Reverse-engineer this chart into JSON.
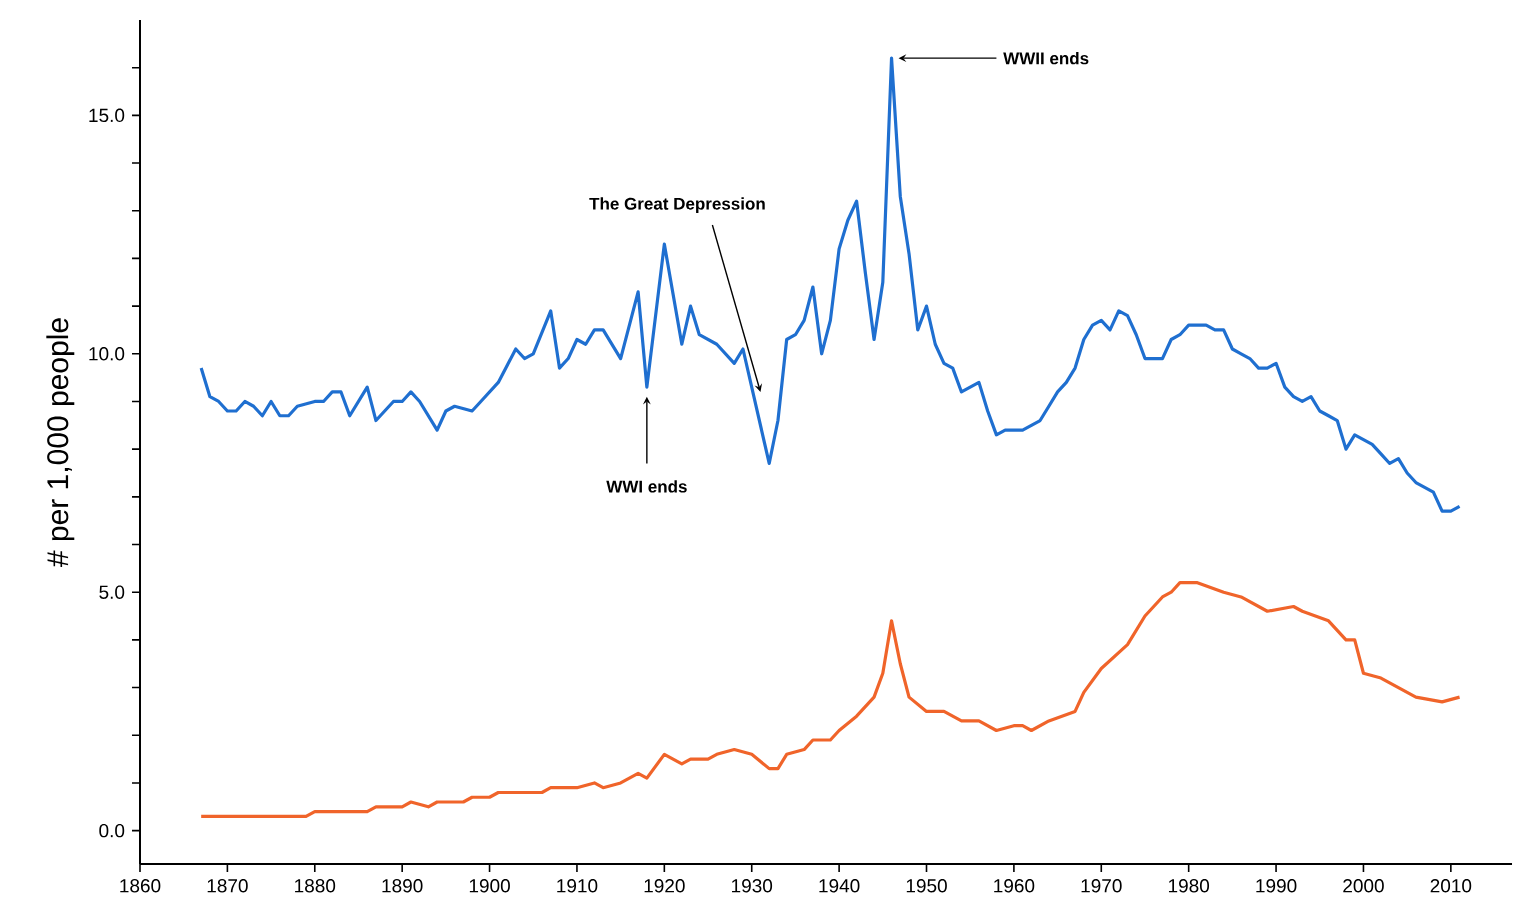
{
  "chart_data": {
    "type": "line",
    "ylabel": "# per 1,000 people",
    "xlim": [
      1860,
      2017
    ],
    "ylim": [
      -0.7,
      17
    ],
    "xticks": [
      1860,
      1870,
      1880,
      1890,
      1900,
      1910,
      1920,
      1930,
      1940,
      1950,
      1960,
      1970,
      1980,
      1990,
      2000,
      2010
    ],
    "yticks": [
      {
        "value": 0,
        "label": "0.0"
      },
      {
        "value": 1,
        "label": null
      },
      {
        "value": 2,
        "label": null
      },
      {
        "value": 3,
        "label": null
      },
      {
        "value": 4,
        "label": null
      },
      {
        "value": 5,
        "label": "5.0"
      },
      {
        "value": 6,
        "label": null
      },
      {
        "value": 7,
        "label": null
      },
      {
        "value": 8,
        "label": null
      },
      {
        "value": 9,
        "label": null
      },
      {
        "value": 10,
        "label": "10.0"
      },
      {
        "value": 11,
        "label": null
      },
      {
        "value": 12,
        "label": null
      },
      {
        "value": 13,
        "label": null
      },
      {
        "value": 14,
        "label": null
      },
      {
        "value": 15,
        "label": "15.0"
      },
      {
        "value": 16,
        "label": null
      }
    ],
    "grid": false,
    "legend": false,
    "marker": "none",
    "line_style": "solid",
    "series": [
      {
        "color": "#1f6fd0",
        "x": [
          1867,
          1868,
          1869,
          1870,
          1871,
          1872,
          1873,
          1874,
          1875,
          1876,
          1877,
          1878,
          1880,
          1881,
          1882,
          1883,
          1884,
          1886,
          1887,
          1889,
          1890,
          1891,
          1892,
          1894,
          1895,
          1896,
          1898,
          1899,
          1901,
          1903,
          1904,
          1905,
          1907,
          1908,
          1909,
          1910,
          1911,
          1912,
          1913,
          1915,
          1917,
          1918,
          1920,
          1922,
          1923,
          1924,
          1926,
          1928,
          1929,
          1932,
          1933,
          1934,
          1935,
          1936,
          1937,
          1938,
          1939,
          1940,
          1941,
          1942,
          1943,
          1944,
          1945,
          1946,
          1947,
          1948,
          1949,
          1950,
          1951,
          1952,
          1953,
          1954,
          1955,
          1956,
          1957,
          1958,
          1959,
          1960,
          1961,
          1962,
          1963,
          1964,
          1965,
          1966,
          1967,
          1968,
          1969,
          1970,
          1971,
          1972,
          1973,
          1974,
          1975,
          1976,
          1977,
          1978,
          1979,
          1980,
          1981,
          1982,
          1983,
          1984,
          1985,
          1986,
          1987,
          1988,
          1989,
          1990,
          1991,
          1992,
          1993,
          1994,
          1995,
          1996,
          1997,
          1998,
          1999,
          2000,
          2001,
          2002,
          2003,
          2004,
          2005,
          2006,
          2007,
          2008,
          2009,
          2010,
          2011
        ],
        "values": [
          9.7,
          9.1,
          9.0,
          8.8,
          8.8,
          9.0,
          8.9,
          8.7,
          9.0,
          8.7,
          8.7,
          8.9,
          9.0,
          9.0,
          9.2,
          9.2,
          8.7,
          9.3,
          8.6,
          9.0,
          9.0,
          9.2,
          9.0,
          8.4,
          8.8,
          8.9,
          8.8,
          9.0,
          9.4,
          10.1,
          9.9,
          10.0,
          10.9,
          9.7,
          9.9,
          10.3,
          10.2,
          10.5,
          10.5,
          9.9,
          11.3,
          9.3,
          12.3,
          10.2,
          11.0,
          10.4,
          10.2,
          9.8,
          10.1,
          7.7,
          8.6,
          10.3,
          10.4,
          10.7,
          11.4,
          10.0,
          10.7,
          12.2,
          12.8,
          13.2,
          11.7,
          10.3,
          11.5,
          16.2,
          13.3,
          12.1,
          10.5,
          11.0,
          10.2,
          9.8,
          9.7,
          9.2,
          9.3,
          9.4,
          8.8,
          8.3,
          8.4,
          8.4,
          8.4,
          8.5,
          8.6,
          8.9,
          9.2,
          9.4,
          9.7,
          10.3,
          10.6,
          10.7,
          10.5,
          10.9,
          10.8,
          10.4,
          9.9,
          9.9,
          9.9,
          10.3,
          10.4,
          10.6,
          10.6,
          10.6,
          10.5,
          10.5,
          10.1,
          10.0,
          9.9,
          9.7,
          9.7,
          9.8,
          9.3,
          9.1,
          9.0,
          9.1,
          8.8,
          8.7,
          8.6,
          8.0,
          8.3,
          8.2,
          8.1,
          7.9,
          7.7,
          7.8,
          7.5,
          7.3,
          7.2,
          7.1,
          6.7,
          6.7,
          6.8
        ]
      },
      {
        "color": "#f0642a",
        "x": [
          1867,
          1879,
          1880,
          1886,
          1887,
          1890,
          1891,
          1893,
          1894,
          1897,
          1898,
          1900,
          1901,
          1906,
          1907,
          1910,
          1912,
          1913,
          1915,
          1917,
          1918,
          1920,
          1922,
          1923,
          1925,
          1926,
          1928,
          1930,
          1932,
          1933,
          1934,
          1936,
          1937,
          1939,
          1940,
          1942,
          1944,
          1945,
          1946,
          1947,
          1948,
          1950,
          1952,
          1954,
          1956,
          1958,
          1960,
          1961,
          1962,
          1964,
          1967,
          1968,
          1970,
          1973,
          1975,
          1977,
          1978,
          1979,
          1980,
          1981,
          1984,
          1986,
          1989,
          1992,
          1993,
          1996,
          1998,
          1999,
          2000,
          2002,
          2004,
          2006,
          2009,
          2011
        ],
        "values": [
          0.3,
          0.3,
          0.4,
          0.4,
          0.5,
          0.5,
          0.6,
          0.5,
          0.6,
          0.6,
          0.7,
          0.7,
          0.8,
          0.8,
          0.9,
          0.9,
          1.0,
          0.9,
          1.0,
          1.2,
          1.1,
          1.6,
          1.4,
          1.5,
          1.5,
          1.6,
          1.7,
          1.6,
          1.3,
          1.3,
          1.6,
          1.7,
          1.9,
          1.9,
          2.1,
          2.4,
          2.8,
          3.3,
          4.4,
          3.5,
          2.8,
          2.5,
          2.5,
          2.3,
          2.3,
          2.1,
          2.2,
          2.2,
          2.1,
          2.3,
          2.5,
          2.9,
          3.4,
          3.9,
          4.5,
          4.9,
          5.0,
          5.2,
          5.2,
          5.2,
          5.0,
          4.9,
          4.6,
          4.7,
          4.6,
          4.4,
          4.0,
          4.0,
          3.3,
          3.2,
          3.0,
          2.8,
          2.7,
          2.8
        ]
      }
    ],
    "annotations": [
      {
        "text": "WWII ends",
        "x": 1946,
        "y": 16.2
      },
      {
        "text": "The Great Depression",
        "x": 1931,
        "y": 9.2
      },
      {
        "text": "WWI ends",
        "x": 1918,
        "y": 9.3
      }
    ]
  }
}
